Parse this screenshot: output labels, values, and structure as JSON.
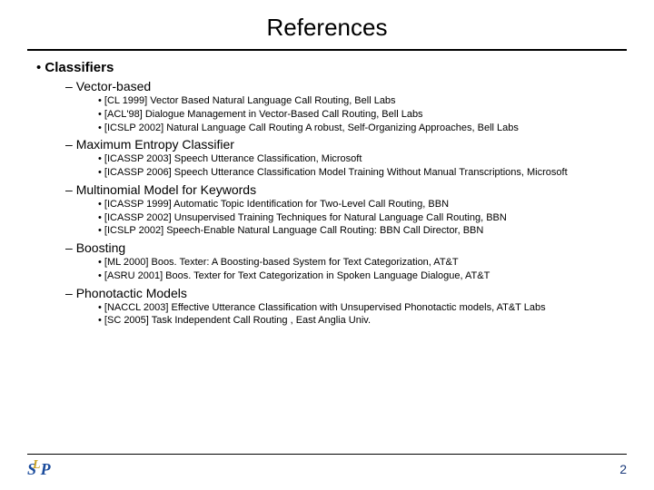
{
  "title": "References",
  "mainSection": "Classifiers",
  "subsections": [
    {
      "heading": "Vector-based",
      "items": [
        "[CL 1999] Vector Based Natural Language Call Routing, Bell Labs",
        "[ACL'98] Dialogue Management in Vector-Based Call Routing, Bell Labs",
        "[ICSLP 2002] Natural Language Call Routing A robust, Self-Organizing Approaches, Bell Labs"
      ]
    },
    {
      "heading": "Maximum Entropy Classifier",
      "items": [
        "[ICASSP 2003] Speech Utterance Classification, Microsoft",
        "[ICASSP 2006] Speech Utterance Classification Model Training Without Manual Transcriptions, Microsoft"
      ]
    },
    {
      "heading": "Multinomial Model for Keywords",
      "items": [
        "[ICASSP 1999] Automatic Topic Identification for Two-Level Call Routing, BBN",
        "[ICASSP 2002] Unsupervised Training Techniques for Natural Language Call Routing, BBN",
        "[ICSLP 2002] Speech-Enable Natural Language Call Routing: BBN Call Director, BBN"
      ]
    },
    {
      "heading": "Boosting",
      "items": [
        "[ML 2000] Boos. Texter: A Boosting-based System for Text Categorization, AT&T",
        "[ASRU 2001] Boos. Texter for Text Categorization in Spoken Language Dialogue, AT&T"
      ]
    },
    {
      "heading": "Phonotactic Models",
      "items": [
        "[NACCL 2003] Effective Utterance Classification with Unsupervised Phonotactic models, AT&T Labs",
        "[SC 2005] Task Independent Call Routing , East Anglia Univ."
      ]
    }
  ],
  "pageNumber": "2",
  "colors": {
    "text": "#000000",
    "background": "#ffffff",
    "rule": "#000000",
    "pageNum": "#1a3a7a",
    "logoBlue": "#1a4b9c",
    "logoGold": "#c9a020"
  },
  "fonts": {
    "titleSize": 26,
    "level1Size": 15,
    "level2Size": 14,
    "level3Size": 11
  }
}
